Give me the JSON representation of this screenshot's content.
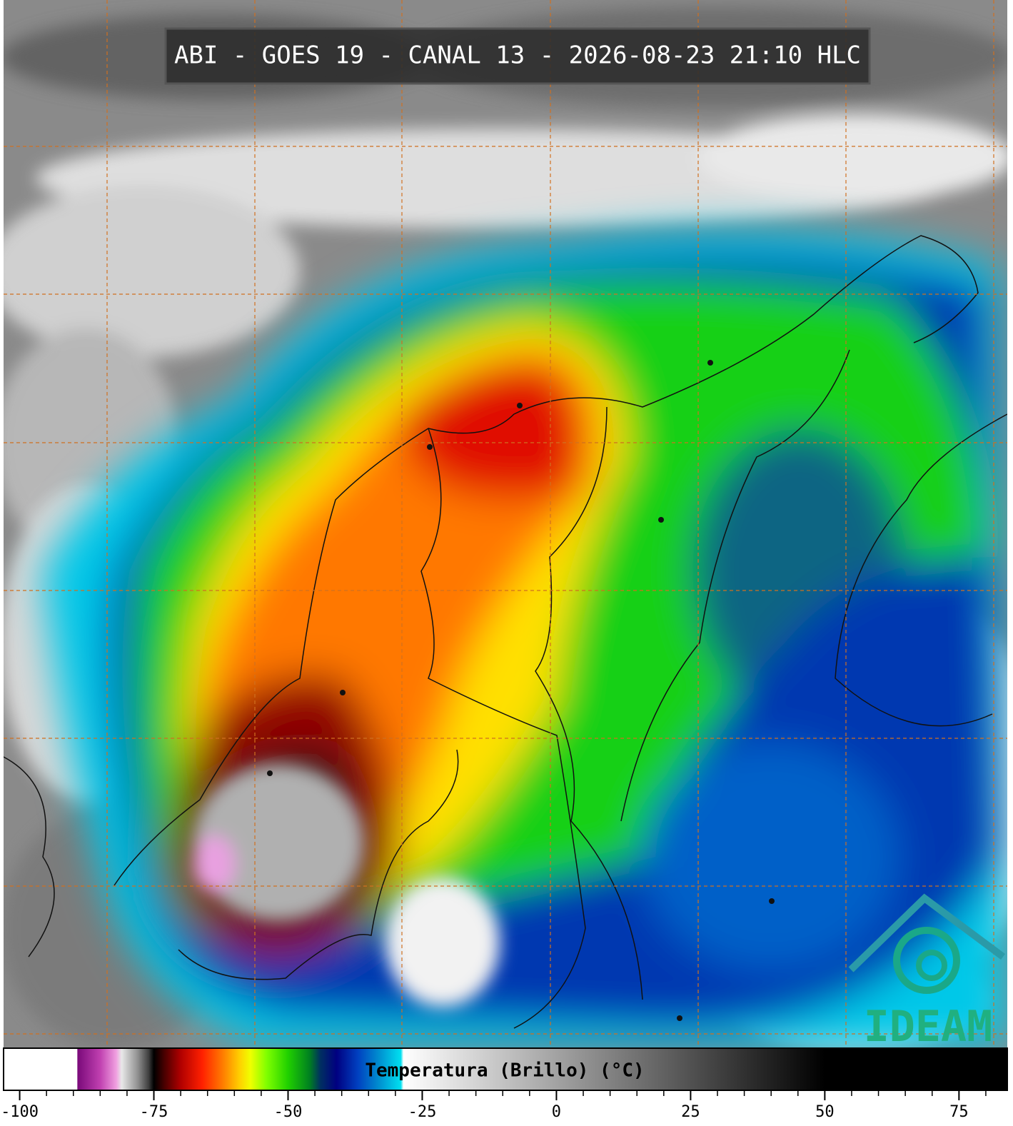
{
  "header": {
    "title": "ABI - GOES 19 - CANAL 13 - 2026-08-23 21:10 HLC"
  },
  "colorbar": {
    "label": "Temperatura (Brillo) (°C)",
    "range": [
      -103,
      84
    ],
    "ticks": [
      -100,
      -75,
      -50,
      -25,
      0,
      25,
      50,
      75
    ],
    "minor_ticks": [
      -95,
      -90,
      -85,
      -80,
      -70,
      -65,
      -60,
      -55,
      -45,
      -40,
      -35,
      -30,
      -20,
      -15,
      -10,
      -5,
      5,
      10,
      15,
      20,
      30,
      35,
      40,
      45,
      55,
      60,
      65,
      70,
      80
    ],
    "colors": [
      {
        "value": -103,
        "color": "#ffffff"
      },
      {
        "value": -89.3,
        "color": "#ffffff"
      },
      {
        "value": -89.2,
        "color": "#7a0a7a"
      },
      {
        "value": -85,
        "color": "#c040b0"
      },
      {
        "value": -82,
        "color": "#f0a0e0"
      },
      {
        "value": -81,
        "color": "#e8e8e8"
      },
      {
        "value": -78,
        "color": "#909090"
      },
      {
        "value": -76,
        "color": "#404040"
      },
      {
        "value": -75,
        "color": "#000000"
      },
      {
        "value": -73,
        "color": "#4a0000"
      },
      {
        "value": -70,
        "color": "#b00000"
      },
      {
        "value": -66,
        "color": "#ff2000"
      },
      {
        "value": -62,
        "color": "#ff8000"
      },
      {
        "value": -59,
        "color": "#ffd000"
      },
      {
        "value": -57,
        "color": "#f0ff00"
      },
      {
        "value": -54,
        "color": "#80ff00"
      },
      {
        "value": -50,
        "color": "#20d000"
      },
      {
        "value": -46,
        "color": "#008020"
      },
      {
        "value": -44,
        "color": "#003060"
      },
      {
        "value": -41,
        "color": "#000080"
      },
      {
        "value": -37,
        "color": "#0040c0"
      },
      {
        "value": -33,
        "color": "#0090d0"
      },
      {
        "value": -29,
        "color": "#00e0f0"
      },
      {
        "value": -28.5,
        "color": "#ffffff"
      },
      {
        "value": 50,
        "color": "#000000"
      },
      {
        "value": 84,
        "color": "#000000"
      }
    ]
  },
  "logo": {
    "text": "IDEAM"
  }
}
